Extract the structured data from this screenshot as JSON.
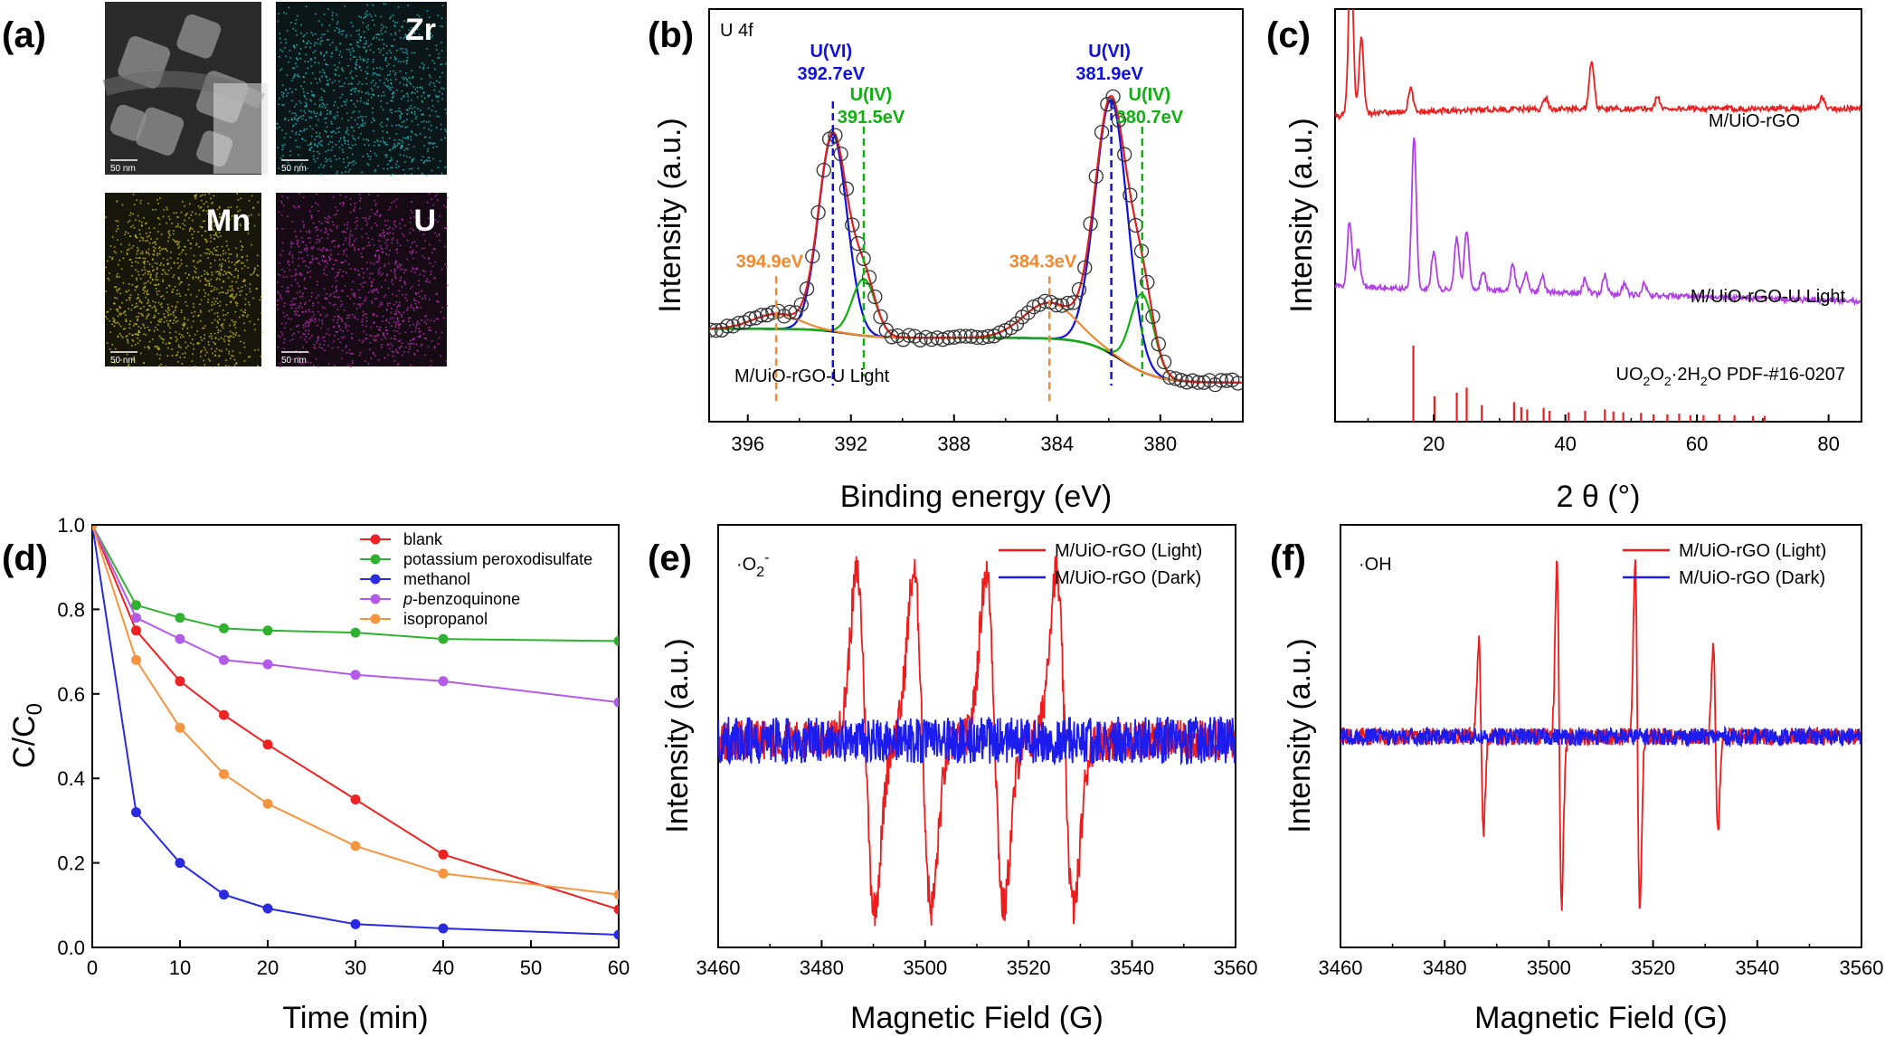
{
  "panels": {
    "a": {
      "letter": "(a)",
      "maps": [
        {
          "label": "",
          "scale": "50 nm",
          "color": "#cfcfcf",
          "bg": "#2a2a2a"
        },
        {
          "label": "Zr",
          "scale": "50 nm",
          "color": "#27b9bd",
          "bg": "#0a1617"
        },
        {
          "label": "Mn",
          "scale": "50 nm",
          "color": "#c9bb1f",
          "bg": "#17160a"
        },
        {
          "label": "U",
          "scale": "50 nm",
          "color": "#c02fb5",
          "bg": "#160a15"
        }
      ]
    },
    "b": {
      "letter": "(b)"
    },
    "c": {
      "letter": "(c)"
    },
    "d": {
      "letter": "(d)"
    },
    "e": {
      "letter": "(e)"
    },
    "f": {
      "letter": "(f)"
    }
  },
  "chart_data": [
    {
      "panel": "b",
      "type": "line",
      "corner_label": "U 4f",
      "xlabel": "Binding energy (eV)",
      "ylabel": "Intensity (a.u.)",
      "xlim": [
        397.5,
        376.8
      ],
      "x_reversed": true,
      "xticks": [
        396,
        392,
        388,
        384,
        380
      ],
      "sample_label": "M/UiO-rGO-U Light",
      "annotations": [
        {
          "line1": "U(VI)",
          "line2": "392.7eV",
          "x": 392.7,
          "color": "#1010e0"
        },
        {
          "line1": "U(IV)",
          "line2": "391.5eV",
          "x": 391.5,
          "color": "#10b010"
        },
        {
          "line1": "",
          "line2": "394.9eV",
          "x": 394.9,
          "color": "#f08a30"
        },
        {
          "line1": "U(VI)",
          "line2": "381.9eV",
          "x": 381.9,
          "color": "#1010e0"
        },
        {
          "line1": "U(IV)",
          "line2": "380.7eV",
          "x": 380.7,
          "color": "#10b010"
        },
        {
          "line1": "",
          "line2": "384.3eV",
          "x": 384.3,
          "color": "#f08a30"
        }
      ],
      "components": [
        {
          "name": "U(VI)",
          "color": "#1010e0",
          "peaks": [
            {
              "center": 392.7,
              "height": 0.66,
              "width": 0.55
            },
            {
              "center": 381.9,
              "height": 0.85,
              "width": 0.62
            }
          ]
        },
        {
          "name": "U(IV)",
          "color": "#10b010",
          "peaks": [
            {
              "center": 391.5,
              "height": 0.19,
              "width": 0.45
            },
            {
              "center": 380.7,
              "height": 0.26,
              "width": 0.45
            }
          ]
        },
        {
          "name": "satellite",
          "color": "#f08a30",
          "peaks": [
            {
              "center": 394.9,
              "height": 0.05,
              "width": 0.9
            },
            {
              "center": 384.3,
              "height": 0.12,
              "width": 1.0
            }
          ]
        }
      ],
      "envelope_color": "#e02020",
      "background_color": "#000000",
      "data_marker": "open circles"
    },
    {
      "panel": "c",
      "type": "line",
      "xlabel": "2 θ (°)",
      "ylabel": "Intensity (a.u.)",
      "xlim": [
        5,
        85
      ],
      "xticks": [
        20,
        40,
        60,
        80
      ],
      "series": [
        {
          "name": "M/UiO-rGO",
          "color": "#e82020",
          "baseline": 0.8,
          "peaks": [
            [
              7.4,
              0.42
            ],
            [
              9.0,
              0.2
            ],
            [
              16.5,
              0.06
            ],
            [
              44,
              0.13
            ],
            [
              37,
              0.03
            ],
            [
              54,
              0.03
            ],
            [
              79,
              0.03
            ]
          ]
        },
        {
          "name": "M/UiO-rGO-U Light",
          "color": "#b040e8",
          "baseline": 0.38,
          "peaks": [
            [
              7.2,
              0.17
            ],
            [
              8.5,
              0.1
            ],
            [
              17,
              0.4
            ],
            [
              20,
              0.1
            ],
            [
              23.5,
              0.14
            ],
            [
              25,
              0.16
            ],
            [
              27.5,
              0.05
            ],
            [
              32,
              0.07
            ],
            [
              34,
              0.05
            ],
            [
              36.5,
              0.04
            ],
            [
              43,
              0.04
            ],
            [
              46,
              0.05
            ],
            [
              49,
              0.03
            ],
            [
              52,
              0.03
            ]
          ]
        }
      ],
      "reference": {
        "label_main": "UO",
        "label_sub1": "2",
        "label_mid": "O",
        "label_sub2": "2",
        "label_mid2": "·2H",
        "label_sub3": "2",
        "label_end": "O   PDF-#16-0207",
        "color": "#e82020",
        "sticks": [
          [
            16.9,
            1.0
          ],
          [
            20.1,
            0.3
          ],
          [
            23.5,
            0.35
          ],
          [
            25.0,
            0.42
          ],
          [
            27.3,
            0.18
          ],
          [
            32.2,
            0.22
          ],
          [
            33.3,
            0.15
          ],
          [
            34.2,
            0.12
          ],
          [
            36.7,
            0.14
          ],
          [
            37.6,
            0.1
          ],
          [
            40.5,
            0.08
          ],
          [
            43.0,
            0.1
          ],
          [
            46.0,
            0.12
          ],
          [
            47.3,
            0.09
          ],
          [
            48.8,
            0.08
          ],
          [
            51.5,
            0.07
          ],
          [
            53.4,
            0.05
          ],
          [
            55.5,
            0.05
          ],
          [
            57.3,
            0.06
          ],
          [
            59.0,
            0.04
          ],
          [
            61.0,
            0.04
          ],
          [
            63.4,
            0.05
          ],
          [
            65.7,
            0.04
          ],
          [
            68.5,
            0.03
          ],
          [
            70.3,
            0.03
          ]
        ]
      }
    },
    {
      "panel": "d",
      "type": "line",
      "xlabel": "Time (min)",
      "ylabel_main": "C/C",
      "ylabel_sub": "0",
      "xlim": [
        0,
        60
      ],
      "ylim": [
        0.0,
        1.0
      ],
      "xticks": [
        0,
        10,
        20,
        30,
        40,
        50,
        60
      ],
      "yticks": [
        "0.0",
        "0.2",
        "0.4",
        "0.6",
        "0.8",
        "1.0"
      ],
      "x": [
        0,
        5,
        10,
        15,
        20,
        30,
        40,
        60
      ],
      "series": [
        {
          "name": "blank",
          "color": "#ee2222",
          "values": [
            1.0,
            0.75,
            0.63,
            0.55,
            0.48,
            0.35,
            0.22,
            0.09
          ]
        },
        {
          "name": "potassium peroxodisulfate",
          "color": "#2fb22f",
          "values": [
            1.0,
            0.81,
            0.78,
            0.755,
            0.75,
            0.745,
            0.73,
            0.725
          ]
        },
        {
          "name": "methanol",
          "color": "#2a2ae0",
          "values": [
            1.0,
            0.32,
            0.2,
            0.125,
            0.092,
            0.055,
            0.045,
            0.03
          ]
        },
        {
          "name_prefix": "p",
          "name": "-benzoquinone",
          "color": "#b45ae8",
          "values": [
            1.0,
            0.78,
            0.73,
            0.68,
            0.67,
            0.645,
            0.63,
            0.58
          ]
        },
        {
          "name": "isopropanol",
          "color": "#f5953f",
          "values": [
            1.0,
            0.68,
            0.52,
            0.41,
            0.34,
            0.24,
            0.175,
            0.125
          ]
        }
      ]
    },
    {
      "panel": "e",
      "type": "line",
      "species_main": "·O",
      "species_sub": "2",
      "species_sup": "-",
      "xlabel": "Magnetic Field (G)",
      "ylabel": "Intensity (a.u.)",
      "xlim": [
        3460,
        3560
      ],
      "xticks": [
        3460,
        3480,
        3500,
        3520,
        3540,
        3560
      ],
      "series": [
        {
          "name": "M/UiO-rGO (Light)",
          "color": "#ee1c1c",
          "lines": [
            3488.5,
            3499.5,
            3513.5,
            3527.0
          ],
          "amplitude": 1.0,
          "noise": 0.12
        },
        {
          "name": "M/UiO-rGO (Dark)",
          "color": "#1c1cee",
          "lines": [],
          "amplitude": 0,
          "noise": 0.14
        }
      ]
    },
    {
      "panel": "f",
      "type": "line",
      "species_main": "·OH",
      "xlabel": "Magnetic Field (G)",
      "ylabel": "Intensity (a.u.)",
      "xlim": [
        3460,
        3560
      ],
      "xticks": [
        3460,
        3480,
        3500,
        3520,
        3540,
        3560
      ],
      "series": [
        {
          "name": "M/UiO-rGO (Light)",
          "color": "#ee1c1c",
          "lines": [
            3487.0,
            3502.0,
            3517.0,
            3532.0
          ],
          "heights": [
            0.55,
            1.0,
            1.0,
            0.55
          ],
          "noise": 0.05
        },
        {
          "name": "M/UiO-rGO (Dark)",
          "color": "#1c1cee",
          "lines": [],
          "noise": 0.05
        }
      ]
    }
  ]
}
